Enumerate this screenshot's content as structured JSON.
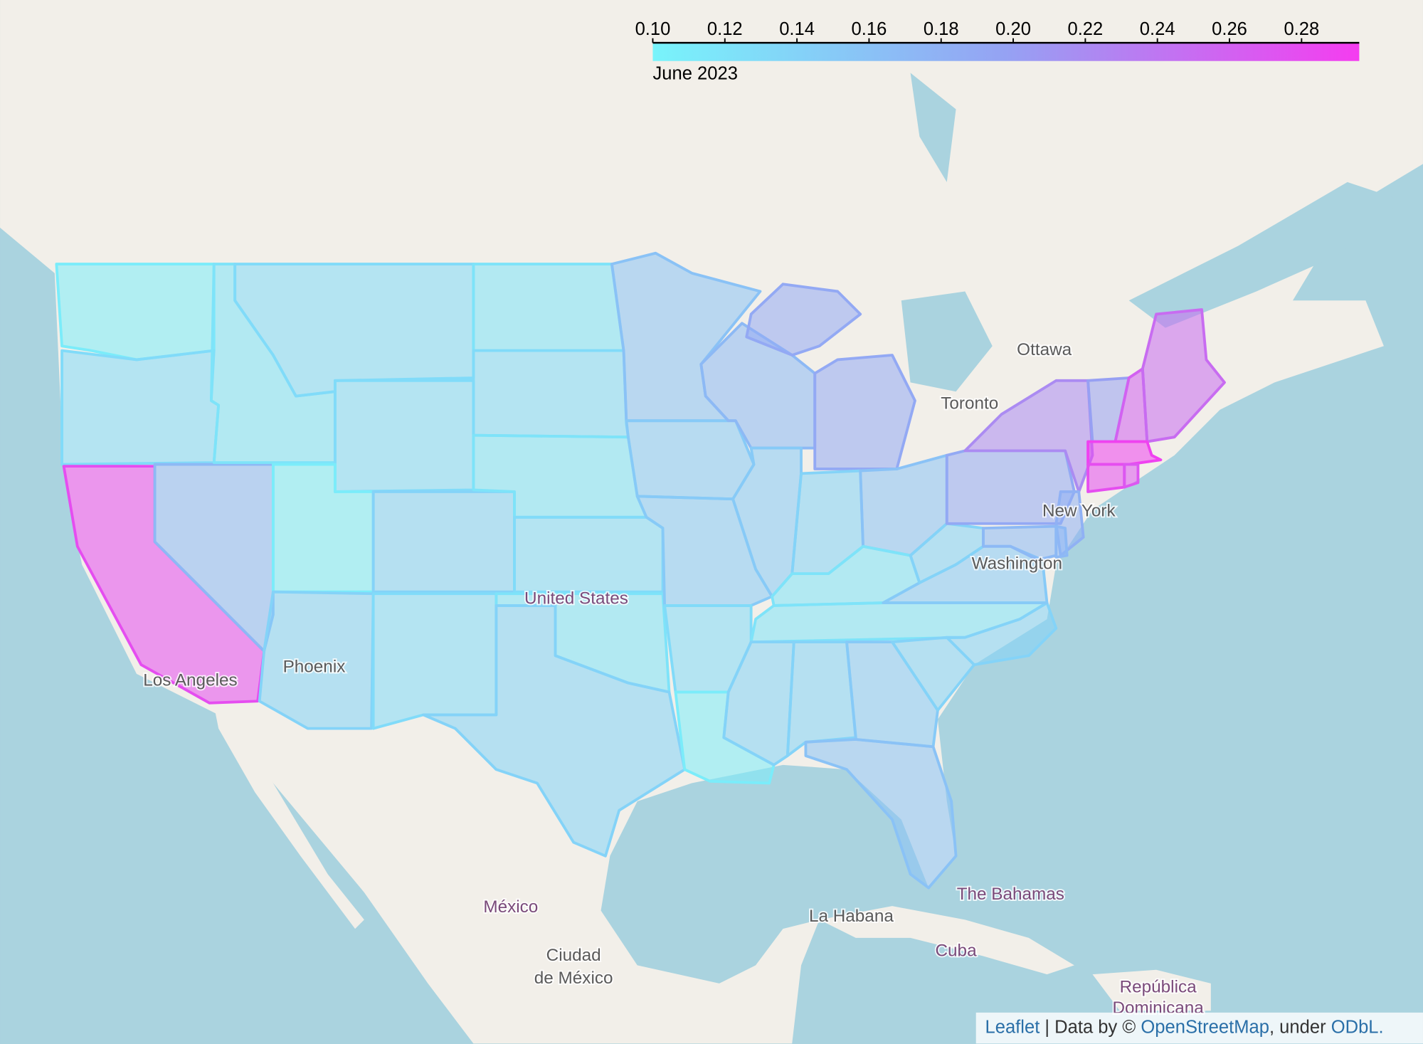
{
  "colorbar": {
    "title": "June 2023",
    "range": [
      0.1,
      0.296
    ],
    "ticks": [
      {
        "value": 0.1,
        "label": "0.10"
      },
      0.12,
      0.14,
      0.16,
      0.18,
      {
        "value": 0.2,
        "label": "0.20"
      },
      0.22,
      0.24,
      0.26,
      0.28
    ],
    "colors": [
      "#78f4fb",
      "#95a2f3",
      "#f53cf0"
    ]
  },
  "regions": {
    "values": [
      0.11,
      0.13,
      0.28,
      0.17,
      0.12,
      0.13,
      0.13,
      0.11,
      0.14,
      0.14,
      0.13,
      0.12,
      0.13,
      0.12,
      0.13,
      0.12,
      0.14,
      0.16,
      0.15,
      0.15,
      0.13,
      0.11,
      0.17,
      0.15,
      0.19,
      0.14,
      0.16,
      0.12,
      0.12,
      0.14,
      0.14,
      0.15,
      0.16,
      0.14,
      0.14,
      0.15,
      0.14,
      0.19,
      0.22,
      0.2,
      0.26,
      0.25,
      0.29,
      0.28,
      0.27,
      0.18,
      0.17,
      0.17
    ]
  },
  "places": [
    "Ottawa",
    "Toronto",
    "New York",
    "Washington",
    "United States",
    "Phoenix",
    "Los Angeles",
    "México",
    "Ciudad",
    "de México",
    "La Habana",
    "The Bahamas",
    "Cuba",
    "República",
    "Dominicana"
  ],
  "attribution": {
    "leaflet": "Leaflet",
    "data_by": "| Data by ©",
    "osm": "OpenStreetMap",
    "under": ", under",
    "odbl": "ODbL."
  }
}
